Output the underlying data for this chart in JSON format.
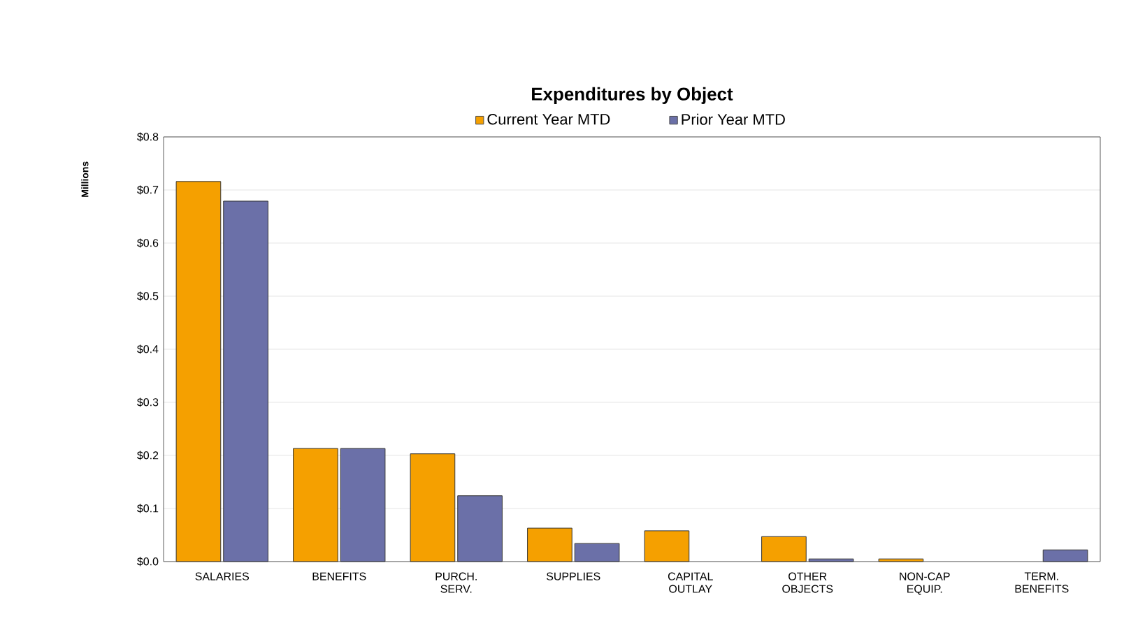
{
  "chart_data": {
    "type": "bar",
    "title": "Expenditures by Object",
    "ylabel": "Millions",
    "categories": [
      "SALARIES",
      "BENEFITS",
      "PURCH. SERV.",
      "SUPPLIES",
      "CAPITAL OUTLAY",
      "OTHER OBJECTS",
      "NON-CAP EQUIP.",
      "TERM. BENEFITS"
    ],
    "series": [
      {
        "name": "Current Year MTD",
        "color": "#f5a000",
        "values": [
          0.716,
          0.213,
          0.203,
          0.063,
          0.058,
          0.047,
          0.005,
          null
        ]
      },
      {
        "name": "Prior Year MTD",
        "color": "#6b70a8",
        "values": [
          0.679,
          0.213,
          0.124,
          0.034,
          null,
          0.005,
          null,
          0.022
        ]
      }
    ],
    "ylim": [
      0,
      0.8
    ],
    "yticks": [
      {
        "value": 0,
        "label": "$0.0"
      },
      {
        "value": 0.1,
        "label": "$0.1"
      },
      {
        "value": 0.2,
        "label": "$0.2"
      },
      {
        "value": 0.3,
        "label": "$0.3"
      },
      {
        "value": 0.4,
        "label": "$0.4"
      },
      {
        "value": 0.5,
        "label": "$0.5"
      },
      {
        "value": 0.6,
        "label": "$0.6"
      },
      {
        "value": 0.7,
        "label": "$0.7"
      },
      {
        "value": 0.8,
        "label": "$0.8"
      }
    ],
    "grid": "y",
    "legend": "top"
  }
}
